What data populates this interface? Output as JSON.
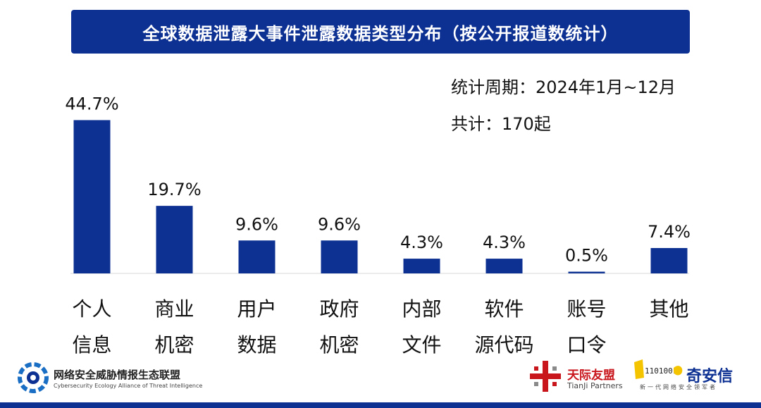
{
  "title": "全球数据泄露大事件泄露数据类型分布（按公开报道数统计）",
  "stats": {
    "period": "统计周期：2024年1月~12月",
    "total": "共计：170起"
  },
  "colors": {
    "bar": "#0d3093",
    "banner": "#0d3093",
    "bottom_bar": "#0d3093",
    "tianji": "#c9161d"
  },
  "chart_data": {
    "type": "bar",
    "categories": [
      [
        "个人",
        "信息"
      ],
      [
        "商业",
        "机密"
      ],
      [
        "用户",
        "数据"
      ],
      [
        "政府",
        "机密"
      ],
      [
        "内部",
        "文件"
      ],
      [
        "软件",
        "源代码"
      ],
      [
        "账号",
        "口令"
      ],
      [
        "其他"
      ]
    ],
    "values": [
      44.7,
      19.7,
      9.6,
      9.6,
      4.3,
      4.3,
      0.5,
      7.4
    ],
    "data_labels": [
      "44.7%",
      "19.7%",
      "9.6%",
      "9.6%",
      "4.3%",
      "4.3%",
      "0.5%",
      "7.4%"
    ],
    "unit": "%",
    "ylim": [
      0,
      45
    ],
    "grid": false,
    "legend": "none"
  },
  "footer": {
    "org_name": "网络安全威胁情报生态联盟",
    "org_subtitle": "Cybersecurity Ecology Alliance of Threat Intelligence",
    "tianji_name": "天际友盟",
    "tianji_sub": "TianJi Partners",
    "qax_name": "奇安信",
    "qax_tagline": "新一代网络安全领军者",
    "qax_logo_digits": "1101001"
  }
}
